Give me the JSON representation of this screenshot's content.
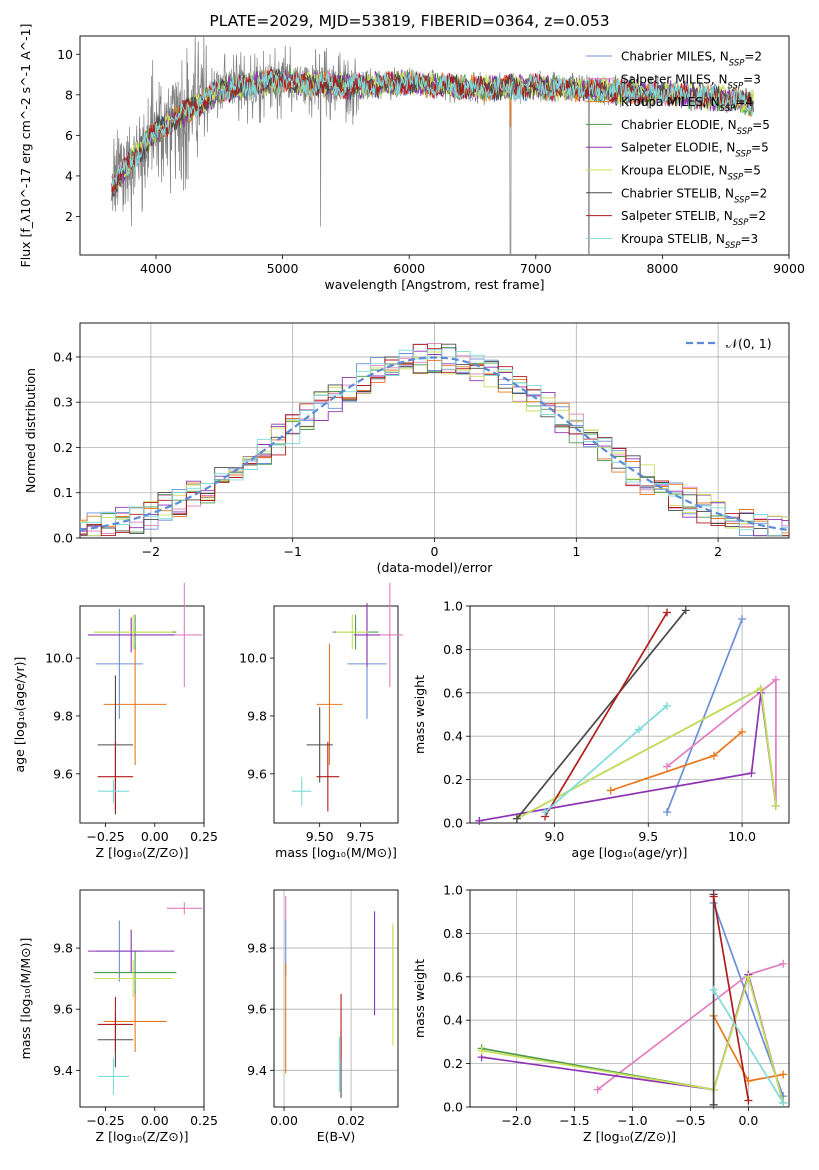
{
  "title": "PLATE=2029, MJD=53819, FIBERID=0364, z=0.053",
  "colors": {
    "Chabrier MILES": "#6a8fd8",
    "Salpeter MILES": "#e07fc0",
    "Kroupa MILES": "#e8781e",
    "Chabrier ELODIE": "#4f9a4f",
    "Salpeter ELODIE": "#8e35b5",
    "Kroupa ELODIE": "#c8e05a",
    "Chabrier STELIB": "#4a4a4a",
    "Salpeter STELIB": "#b01c1c",
    "Kroupa STELIB": "#7fdada",
    "data": "#808080",
    "gauss": "#5b8bd8",
    "grid": "#b0b0b0"
  },
  "chart_data": [
    {
      "type": "line",
      "name": "spectrum",
      "xlabel": "wavelength [Angstrom, rest frame]",
      "ylabel": "Flux [f_λ10^-17 erg cm^-2 s^-1 A^-1]",
      "xlim": [
        3400,
        9000
      ],
      "ylim": [
        0.1,
        10.9
      ],
      "xticks": [
        "4000",
        "5000",
        "6000",
        "7000",
        "8000",
        "9000"
      ],
      "yticks": [
        "2",
        "4",
        "6",
        "8",
        "10"
      ],
      "legend_position": "upper right",
      "legend": [
        {
          "model": "Chabrier MILES",
          "nssp": "2"
        },
        {
          "model": "Salpeter MILES",
          "nssp": "3"
        },
        {
          "model": "Kroupa MILES",
          "nssp": "4"
        },
        {
          "model": "Chabrier ELODIE",
          "nssp": "5"
        },
        {
          "model": "Salpeter ELODIE",
          "nssp": "5"
        },
        {
          "model": "Kroupa ELODIE",
          "nssp": "5"
        },
        {
          "model": "Chabrier STELIB",
          "nssp": "2"
        },
        {
          "model": "Salpeter STELIB",
          "nssp": "2"
        },
        {
          "model": "Kroupa STELIB",
          "nssp": "3"
        }
      ],
      "continuum_model": {
        "x": [
          3650,
          3800,
          4000,
          4200,
          4500,
          5000,
          5500,
          6000,
          6500,
          7000,
          7500,
          8000,
          8500,
          8700
        ],
        "y": [
          3.4,
          4.7,
          6.2,
          7.0,
          8.2,
          8.7,
          8.4,
          8.6,
          8.3,
          8.4,
          8.2,
          8.1,
          7.8,
          7.6
        ]
      }
    },
    {
      "type": "histogram",
      "name": "residuals",
      "xlabel": "(data-model)/error",
      "ylabel": "Normed distribution",
      "xlim": [
        -2.5,
        2.5
      ],
      "ylim": [
        0,
        0.475
      ],
      "xticks": [
        "−2",
        "−1",
        "0",
        "1",
        "2"
      ],
      "yticks": [
        "0.0",
        "0.1",
        "0.2",
        "0.3",
        "0.4"
      ],
      "legend_label": "𝒩(0, 1)",
      "grid": true,
      "bin_width": 0.1
    },
    {
      "type": "errorbar",
      "name": "age_vs_Z",
      "xlabel": "Z [log₁₀(Z/Z⊙)]",
      "ylabel": "age [log₁₀(age/yr)]",
      "xlim": [
        -0.38,
        0.25
      ],
      "ylim": [
        9.43,
        10.18
      ],
      "xticks": [
        "−0.25",
        "0.00",
        "0.25"
      ],
      "yticks": [
        "9.6",
        "9.8",
        "10.0"
      ],
      "points": [
        {
          "model": "Chabrier MILES",
          "x": -0.18,
          "xerr": 0.12,
          "y": 9.98,
          "yerr": 0.19
        },
        {
          "model": "Salpeter MILES",
          "x": 0.15,
          "xerr": 0.09,
          "y": 10.08,
          "yerr": 0.18
        },
        {
          "model": "Kroupa MILES",
          "x": -0.1,
          "xerr": 0.16,
          "y": 9.84,
          "yerr": 0.21
        },
        {
          "model": "Chabrier ELODIE",
          "x": -0.1,
          "xerr": 0.21,
          "y": 10.09,
          "yerr": 0.06
        },
        {
          "model": "Salpeter ELODIE",
          "x": -0.12,
          "xerr": 0.22,
          "y": 10.08,
          "yerr": 0.06
        },
        {
          "model": "Kroupa ELODIE",
          "x": -0.11,
          "xerr": 0.2,
          "y": 10.09,
          "yerr": 0.06
        },
        {
          "model": "Chabrier STELIB",
          "x": -0.2,
          "xerr": 0.09,
          "y": 9.7,
          "yerr": 0.24
        },
        {
          "model": "Salpeter STELIB",
          "x": -0.2,
          "xerr": 0.09,
          "y": 9.59,
          "yerr": 0.12
        },
        {
          "model": "Kroupa STELIB",
          "x": -0.21,
          "xerr": 0.08,
          "y": 9.54,
          "yerr": 0.04
        }
      ]
    },
    {
      "type": "errorbar",
      "name": "age_vs_mass",
      "xlabel": "mass [log₁₀(M/M⊙)]",
      "xlim": [
        9.22,
        9.98
      ],
      "ylim": [
        9.43,
        10.18
      ],
      "xticks": [
        "9.50",
        "9.75"
      ],
      "yticks": [
        "9.6",
        "9.8",
        "10.0"
      ],
      "points": [
        {
          "model": "Chabrier MILES",
          "x": 9.79,
          "xerr": 0.12,
          "y": 9.98,
          "yerr": 0.19
        },
        {
          "model": "Salpeter MILES",
          "x": 9.93,
          "xerr": 0.08,
          "y": 10.08,
          "yerr": 0.18
        },
        {
          "model": "Kroupa MILES",
          "x": 9.56,
          "xerr": 0.08,
          "y": 9.84,
          "yerr": 0.21
        },
        {
          "model": "Chabrier ELODIE",
          "x": 9.72,
          "xerr": 0.14,
          "y": 10.09,
          "yerr": 0.06
        },
        {
          "model": "Salpeter ELODIE",
          "x": 9.79,
          "xerr": 0.08,
          "y": 10.08,
          "yerr": 0.11
        },
        {
          "model": "Kroupa ELODIE",
          "x": 9.7,
          "xerr": 0.1,
          "y": 10.09,
          "yerr": 0.06
        },
        {
          "model": "Chabrier STELIB",
          "x": 9.5,
          "xerr": 0.08,
          "y": 9.7,
          "yerr": 0.13
        },
        {
          "model": "Salpeter STELIB",
          "x": 9.55,
          "xerr": 0.07,
          "y": 9.59,
          "yerr": 0.12
        },
        {
          "model": "Kroupa STELIB",
          "x": 9.39,
          "xerr": 0.06,
          "y": 9.54,
          "yerr": 0.05
        }
      ]
    },
    {
      "type": "line",
      "name": "massweight_vs_age",
      "xlabel": "age [log₁₀(age/yr)]",
      "ylabel": "mass weight",
      "xlim": [
        8.55,
        10.25
      ],
      "ylim": [
        0,
        1
      ],
      "xticks": [
        "9.0",
        "9.5",
        "10.0"
      ],
      "yticks": [
        "0.0",
        "0.2",
        "0.4",
        "0.6",
        "0.8",
        "1.0"
      ],
      "grid": true,
      "series": [
        {
          "model": "Chabrier MILES",
          "x": [
            9.6,
            10.0
          ],
          "y": [
            0.05,
            0.94
          ]
        },
        {
          "model": "Salpeter MILES",
          "x": [
            9.6,
            10.18,
            10.18
          ],
          "y": [
            0.26,
            0.66,
            0.08
          ]
        },
        {
          "model": "Kroupa MILES",
          "x": [
            9.3,
            9.85,
            10.0
          ],
          "y": [
            0.15,
            0.31,
            0.42
          ]
        },
        {
          "model": "Chabrier ELODIE",
          "x": [
            8.8,
            10.1,
            10.18
          ],
          "y": [
            0.02,
            0.62,
            0.08
          ]
        },
        {
          "model": "Salpeter ELODIE",
          "x": [
            8.6,
            10.05,
            10.1,
            10.18
          ],
          "y": [
            0.01,
            0.23,
            0.6,
            0.08
          ]
        },
        {
          "model": "Kroupa ELODIE",
          "x": [
            8.8,
            10.1,
            10.18
          ],
          "y": [
            0.02,
            0.62,
            0.08
          ]
        },
        {
          "model": "Chabrier STELIB",
          "x": [
            8.8,
            9.7
          ],
          "y": [
            0.02,
            0.98
          ]
        },
        {
          "model": "Salpeter STELIB",
          "x": [
            8.95,
            9.6
          ],
          "y": [
            0.03,
            0.97
          ]
        },
        {
          "model": "Kroupa STELIB",
          "x": [
            8.95,
            9.45,
            9.6
          ],
          "y": [
            0.05,
            0.43,
            0.54
          ]
        }
      ]
    },
    {
      "type": "errorbar",
      "name": "mass_vs_Z",
      "xlabel": "Z [log₁₀(Z/Z⊙)]",
      "ylabel": "mass [log₁₀(M/M⊙)]",
      "xlim": [
        -0.38,
        0.25
      ],
      "ylim": [
        9.28,
        9.99
      ],
      "xticks": [
        "−0.25",
        "0.00",
        "0.25"
      ],
      "yticks": [
        "9.4",
        "9.6",
        "9.8"
      ],
      "points": [
        {
          "model": "Chabrier MILES",
          "x": -0.18,
          "xerr": 0.12,
          "y": 9.79,
          "yerr": 0.1
        },
        {
          "model": "Salpeter MILES",
          "x": 0.15,
          "xerr": 0.09,
          "y": 9.93,
          "yerr": 0.02
        },
        {
          "model": "Kroupa MILES",
          "x": -0.1,
          "xerr": 0.16,
          "y": 9.56,
          "yerr": 0.1
        },
        {
          "model": "Chabrier ELODIE",
          "x": -0.1,
          "xerr": 0.21,
          "y": 9.72,
          "yerr": 0.07
        },
        {
          "model": "Salpeter ELODIE",
          "x": -0.12,
          "xerr": 0.22,
          "y": 9.79,
          "yerr": 0.07
        },
        {
          "model": "Kroupa ELODIE",
          "x": -0.11,
          "xerr": 0.2,
          "y": 9.7,
          "yerr": 0.06
        },
        {
          "model": "Chabrier STELIB",
          "x": -0.2,
          "xerr": 0.09,
          "y": 9.5,
          "yerr": 0.09
        },
        {
          "model": "Salpeter STELIB",
          "x": -0.2,
          "xerr": 0.09,
          "y": 9.55,
          "yerr": 0.09
        },
        {
          "model": "Kroupa STELIB",
          "x": -0.21,
          "xerr": 0.08,
          "y": 9.38,
          "yerr": 0.06
        }
      ]
    },
    {
      "type": "errorbar",
      "name": "mass_vs_ebv",
      "xlabel": "E(B-V)",
      "xlim": [
        -0.003,
        0.034
      ],
      "ylim": [
        9.28,
        9.99
      ],
      "xticks": [
        "0.00",
        "0.02"
      ],
      "yticks": [
        "9.4",
        "9.6",
        "9.8"
      ],
      "points": [
        {
          "model": "Chabrier MILES",
          "x": 0.0005,
          "y": 9.8,
          "yerr": 0.09
        },
        {
          "model": "Salpeter MILES",
          "x": 0.0005,
          "y": 9.93,
          "yerr": 0.04
        },
        {
          "model": "Kroupa MILES",
          "x": 0.0005,
          "y": 9.57,
          "yerr": 0.18
        },
        {
          "model": "Chabrier ELODIE",
          "x": 0.0325,
          "y": 9.74,
          "yerr": 0.13
        },
        {
          "model": "Salpeter ELODIE",
          "x": 0.027,
          "y": 9.75,
          "yerr": 0.17
        },
        {
          "model": "Kroupa ELODIE",
          "x": 0.0325,
          "y": 9.68,
          "yerr": 0.2
        },
        {
          "model": "Chabrier STELIB",
          "x": 0.017,
          "y": 9.42,
          "yerr": 0.11
        },
        {
          "model": "Salpeter STELIB",
          "x": 0.017,
          "y": 9.54,
          "yerr": 0.11
        },
        {
          "model": "Kroupa STELIB",
          "x": 0.0165,
          "y": 9.42,
          "yerr": 0.09
        }
      ]
    },
    {
      "type": "line",
      "name": "massweight_vs_Z",
      "xlabel": "Z [log₁₀(Z/Z⊙)]",
      "ylabel": "mass weight",
      "xlim": [
        -2.4,
        0.35
      ],
      "ylim": [
        0,
        1
      ],
      "xticks": [
        "−2.0",
        "−1.5",
        "−1.0",
        "−0.5",
        "0.0"
      ],
      "yticks": [
        "0.0",
        "0.2",
        "0.4",
        "0.6",
        "0.8",
        "1.0"
      ],
      "grid": true,
      "series": [
        {
          "model": "Chabrier MILES",
          "x": [
            -0.3,
            0.3
          ],
          "y": [
            0.94,
            0.05
          ]
        },
        {
          "model": "Salpeter MILES",
          "x": [
            -1.3,
            0.0,
            0.3
          ],
          "y": [
            0.08,
            0.61,
            0.66
          ]
        },
        {
          "model": "Kroupa MILES",
          "x": [
            -0.3,
            0.0,
            0.3
          ],
          "y": [
            0.42,
            0.12,
            0.15
          ]
        },
        {
          "model": "Chabrier ELODIE",
          "x": [
            -2.3,
            -0.3,
            0.0,
            0.3
          ],
          "y": [
            0.27,
            0.08,
            0.6,
            0.02
          ]
        },
        {
          "model": "Salpeter ELODIE",
          "x": [
            -2.3,
            -0.3,
            0.0,
            0.3
          ],
          "y": [
            0.23,
            0.08,
            0.61,
            0.02
          ]
        },
        {
          "model": "Kroupa ELODIE",
          "x": [
            -2.3,
            -0.3,
            0.0,
            0.3
          ],
          "y": [
            0.26,
            0.08,
            0.6,
            0.02
          ]
        },
        {
          "model": "Chabrier STELIB",
          "x": [
            -0.3,
            -0.3
          ],
          "y": [
            0.98,
            0.01
          ]
        },
        {
          "model": "Salpeter STELIB",
          "x": [
            -0.3,
            0.0
          ],
          "y": [
            0.97,
            0.03
          ]
        },
        {
          "model": "Kroupa STELIB",
          "x": [
            -0.3,
            0.3
          ],
          "y": [
            0.54,
            0.02
          ]
        }
      ]
    }
  ]
}
